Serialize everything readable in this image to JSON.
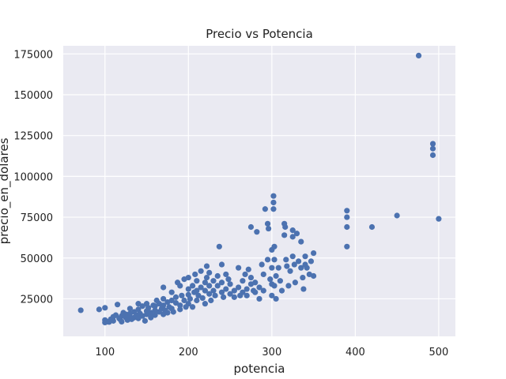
{
  "chart_data": {
    "type": "scatter",
    "title": "Precio vs Potencia",
    "xlabel": "potencia",
    "ylabel": "precio_en_dolares",
    "xlim": [
      50,
      520
    ],
    "ylim": [
      2000,
      180000
    ],
    "xticks": [
      100,
      200,
      300,
      400,
      500
    ],
    "yticks": [
      25000,
      50000,
      75000,
      100000,
      125000,
      150000,
      175000
    ],
    "xtick_labels": [
      "100",
      "200",
      "300",
      "400",
      "500"
    ],
    "ytick_labels": [
      "25000",
      "50000",
      "75000",
      "100000",
      "125000",
      "150000",
      "175000"
    ],
    "grid": true,
    "background": "#eaeaf2",
    "point_color": "#4c72b0",
    "points": [
      [
        71,
        18000
      ],
      [
        93,
        18500
      ],
      [
        100,
        10500
      ],
      [
        100,
        12000
      ],
      [
        100,
        19500
      ],
      [
        102,
        11000
      ],
      [
        105,
        10800
      ],
      [
        107,
        12500
      ],
      [
        110,
        14000
      ],
      [
        110,
        11500
      ],
      [
        113,
        15000
      ],
      [
        115,
        21500
      ],
      [
        117,
        13000
      ],
      [
        118,
        12500
      ],
      [
        120,
        14500
      ],
      [
        120,
        11000
      ],
      [
        122,
        16500
      ],
      [
        125,
        13500
      ],
      [
        125,
        15500
      ],
      [
        127,
        12000
      ],
      [
        130,
        16000
      ],
      [
        130,
        14000
      ],
      [
        130,
        19000
      ],
      [
        132,
        12500
      ],
      [
        135,
        17000
      ],
      [
        135,
        13500
      ],
      [
        138,
        15000
      ],
      [
        140,
        22000
      ],
      [
        140,
        18500
      ],
      [
        140,
        13000
      ],
      [
        142,
        16000
      ],
      [
        145,
        20500
      ],
      [
        145,
        14500
      ],
      [
        148,
        11500
      ],
      [
        150,
        17500
      ],
      [
        150,
        22000
      ],
      [
        150,
        15500
      ],
      [
        152,
        19500
      ],
      [
        155,
        16500
      ],
      [
        155,
        13500
      ],
      [
        158,
        21000
      ],
      [
        160,
        18000
      ],
      [
        160,
        15000
      ],
      [
        160,
        20500
      ],
      [
        162,
        24000
      ],
      [
        165,
        17000
      ],
      [
        165,
        22000
      ],
      [
        168,
        19000
      ],
      [
        170,
        15500
      ],
      [
        170,
        21000
      ],
      [
        170,
        25000
      ],
      [
        170,
        32000
      ],
      [
        172,
        18000
      ],
      [
        175,
        23000
      ],
      [
        175,
        16500
      ],
      [
        177,
        20000
      ],
      [
        180,
        24000
      ],
      [
        180,
        19000
      ],
      [
        180,
        29000
      ],
      [
        182,
        17000
      ],
      [
        185,
        22500
      ],
      [
        185,
        26000
      ],
      [
        187,
        35000
      ],
      [
        190,
        21000
      ],
      [
        190,
        18500
      ],
      [
        190,
        33000
      ],
      [
        192,
        27000
      ],
      [
        195,
        24000
      ],
      [
        195,
        37000
      ],
      [
        197,
        20000
      ],
      [
        200,
        31000
      ],
      [
        200,
        22000
      ],
      [
        200,
        27500
      ],
      [
        200,
        38000
      ],
      [
        202,
        25000
      ],
      [
        205,
        33000
      ],
      [
        205,
        20000
      ],
      [
        207,
        29000
      ],
      [
        208,
        40000
      ],
      [
        210,
        24000
      ],
      [
        210,
        30000
      ],
      [
        210,
        36000
      ],
      [
        212,
        27000
      ],
      [
        215,
        32000
      ],
      [
        215,
        42000
      ],
      [
        217,
        25500
      ],
      [
        220,
        30000
      ],
      [
        220,
        35000
      ],
      [
        220,
        22000
      ],
      [
        222,
        45000
      ],
      [
        222,
        38000
      ],
      [
        225,
        28000
      ],
      [
        225,
        33000
      ],
      [
        225,
        41000
      ],
      [
        227,
        24000
      ],
      [
        230,
        36000
      ],
      [
        230,
        30000
      ],
      [
        232,
        27000
      ],
      [
        235,
        39000
      ],
      [
        235,
        33000
      ],
      [
        237,
        57000
      ],
      [
        240,
        29000
      ],
      [
        240,
        35000
      ],
      [
        240,
        46000
      ],
      [
        242,
        26000
      ],
      [
        245,
        31000
      ],
      [
        245,
        40000
      ],
      [
        248,
        37000
      ],
      [
        250,
        28000
      ],
      [
        250,
        34000
      ],
      [
        255,
        30000
      ],
      [
        255,
        26000
      ],
      [
        260,
        32000
      ],
      [
        260,
        44000
      ],
      [
        262,
        27000
      ],
      [
        265,
        36000
      ],
      [
        265,
        29000
      ],
      [
        268,
        40000
      ],
      [
        270,
        31000
      ],
      [
        270,
        27000
      ],
      [
        272,
        43000
      ],
      [
        275,
        34000
      ],
      [
        275,
        38000
      ],
      [
        275,
        69000
      ],
      [
        278,
        30000
      ],
      [
        280,
        29000
      ],
      [
        280,
        35000
      ],
      [
        282,
        66000
      ],
      [
        285,
        25000
      ],
      [
        285,
        32000
      ],
      [
        288,
        46000
      ],
      [
        290,
        40000
      ],
      [
        290,
        30000
      ],
      [
        292,
        80000
      ],
      [
        295,
        49000
      ],
      [
        295,
        71000
      ],
      [
        296,
        68000
      ],
      [
        298,
        37000
      ],
      [
        300,
        44000
      ],
      [
        300,
        55000
      ],
      [
        300,
        27000
      ],
      [
        300,
        34000
      ],
      [
        302,
        88000
      ],
      [
        302,
        84000
      ],
      [
        302,
        80000
      ],
      [
        303,
        49000
      ],
      [
        303,
        57000
      ],
      [
        303,
        33000
      ],
      [
        305,
        25000
      ],
      [
        305,
        39000
      ],
      [
        308,
        44000
      ],
      [
        310,
        36000
      ],
      [
        312,
        30000
      ],
      [
        315,
        71000
      ],
      [
        315,
        64000
      ],
      [
        316,
        69000
      ],
      [
        317,
        49000
      ],
      [
        318,
        45000
      ],
      [
        320,
        33000
      ],
      [
        322,
        42000
      ],
      [
        325,
        67000
      ],
      [
        325,
        63000
      ],
      [
        325,
        51000
      ],
      [
        327,
        46000
      ],
      [
        328,
        35000
      ],
      [
        330,
        65000
      ],
      [
        332,
        48000
      ],
      [
        335,
        60000
      ],
      [
        335,
        44000
      ],
      [
        337,
        38000
      ],
      [
        338,
        31000
      ],
      [
        340,
        51000
      ],
      [
        340,
        46000
      ],
      [
        342,
        44000
      ],
      [
        345,
        40000
      ],
      [
        347,
        48000
      ],
      [
        350,
        53000
      ],
      [
        350,
        39000
      ],
      [
        390,
        79000
      ],
      [
        390,
        75000
      ],
      [
        390,
        69000
      ],
      [
        390,
        57000
      ],
      [
        420,
        69000
      ],
      [
        450,
        76000
      ],
      [
        476,
        174000
      ],
      [
        493,
        120000
      ],
      [
        493,
        117000
      ],
      [
        493,
        113000
      ],
      [
        500,
        74000
      ]
    ]
  }
}
